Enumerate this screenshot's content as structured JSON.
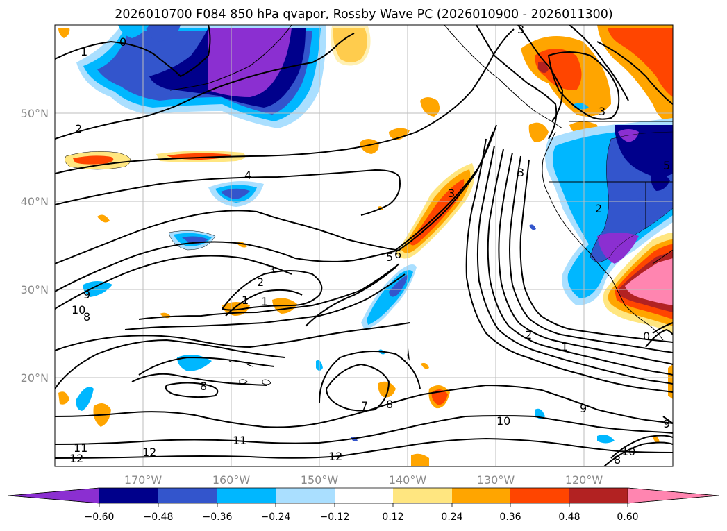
{
  "figure": {
    "title": "2026010700 F084 850 hPa qvapor, Rossby Wave PC (2026010900 - 2026011300)"
  },
  "map": {
    "lat_labels": [
      "50°N",
      "40°N",
      "30°N",
      "20°N"
    ],
    "lon_labels": [
      "170°W",
      "160°W",
      "150°W",
      "140°W",
      "130°W",
      "120°W"
    ],
    "grid": true
  },
  "colorbar": {
    "ticks": [
      "−0.60",
      "−0.48",
      "−0.36",
      "−0.24",
      "−0.12",
      "0.12",
      "0.24",
      "0.36",
      "0.48",
      "0.60"
    ],
    "colors": [
      "#8b2fd1",
      "#00008b",
      "#3355cc",
      "#00b7ff",
      "#aadfff",
      "#ffffff",
      "#ffe680",
      "#ffa500",
      "#ff4500",
      "#b22222",
      "#ff85b0"
    ],
    "extend": "both"
  },
  "contour_labels": [
    "0",
    "1",
    "2",
    "3",
    "4",
    "5",
    "6",
    "7",
    "8",
    "9",
    "10",
    "11",
    "12"
  ],
  "placed_labels": [
    "0",
    "1",
    "2",
    "3",
    "4",
    "3",
    "3",
    "5",
    "6",
    "3",
    "2",
    "1",
    "9",
    "10",
    "8",
    "1",
    "2",
    "1",
    "8",
    "7",
    "8",
    "9",
    "10",
    "11",
    "11",
    "12",
    "12",
    "12",
    "10",
    "8",
    "9",
    "0",
    "2",
    "5",
    "3"
  ]
}
